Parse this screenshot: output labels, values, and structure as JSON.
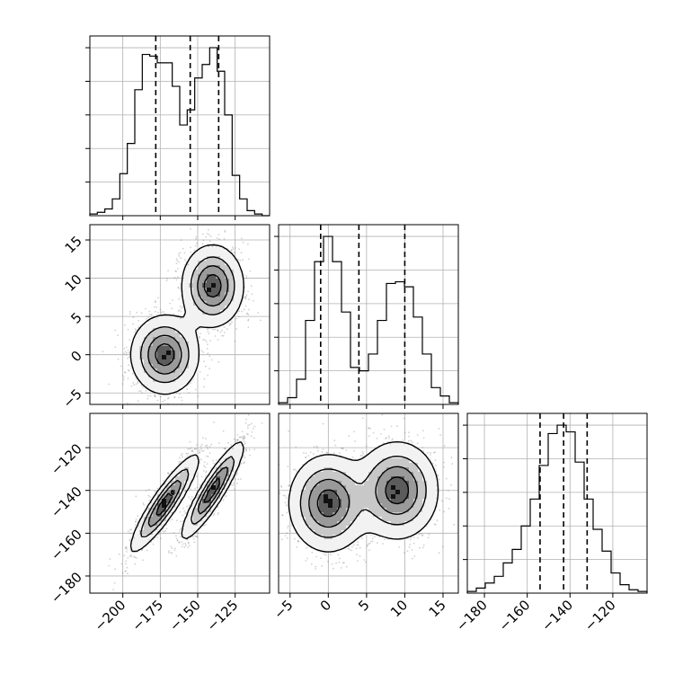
{
  "chart_data": {
    "type": "corner",
    "grid": true,
    "parameters": [
      {
        "range": [
          -222,
          -102
        ],
        "ticks": [
          -200,
          -175,
          -150,
          -125
        ],
        "tick_labels": [
          "−200",
          "−175",
          "−150",
          "−125"
        ],
        "quantiles": [
          -178,
          -155,
          -136
        ],
        "hist": [
          0.01,
          0.02,
          0.04,
          0.1,
          0.25,
          0.43,
          0.75,
          0.96,
          0.95,
          0.91,
          0.91,
          0.77,
          0.54,
          0.63,
          0.82,
          0.9,
          1.0,
          0.86,
          0.6,
          0.24,
          0.1,
          0.03,
          0.01,
          0.0
        ]
      },
      {
        "range": [
          -6.5,
          17
        ],
        "ticks": [
          -5,
          0,
          5,
          10,
          15
        ],
        "tick_labels": [
          "−5",
          "0",
          "5",
          "10",
          "15"
        ],
        "quantiles": [
          -1.0,
          4.0,
          10.0
        ],
        "hist": [
          0.01,
          0.04,
          0.15,
          0.5,
          0.85,
          1.0,
          0.85,
          0.55,
          0.22,
          0.2,
          0.3,
          0.5,
          0.72,
          0.73,
          0.7,
          0.52,
          0.3,
          0.1,
          0.05,
          0.01
        ]
      },
      {
        "range": [
          -188,
          -104
        ],
        "ticks": [
          -180,
          -160,
          -140,
          -120
        ],
        "tick_labels": [
          "−180",
          "−160",
          "−140",
          "−120"
        ],
        "quantiles": [
          -154,
          -143,
          -132
        ],
        "hist": [
          0.01,
          0.03,
          0.06,
          0.1,
          0.18,
          0.26,
          0.4,
          0.56,
          0.76,
          0.95,
          1.0,
          0.96,
          0.78,
          0.56,
          0.38,
          0.25,
          0.12,
          0.05,
          0.02,
          0.01
        ]
      }
    ],
    "modes": [
      {
        "means": [
          -172,
          0,
          -146
        ],
        "sds": [
          11,
          2.5,
          11
        ],
        "corr02": 0.9
      },
      {
        "means": [
          -140,
          9,
          -140
        ],
        "sds": [
          10,
          2.6,
          11
        ],
        "corr02": 0.9
      }
    ]
  }
}
